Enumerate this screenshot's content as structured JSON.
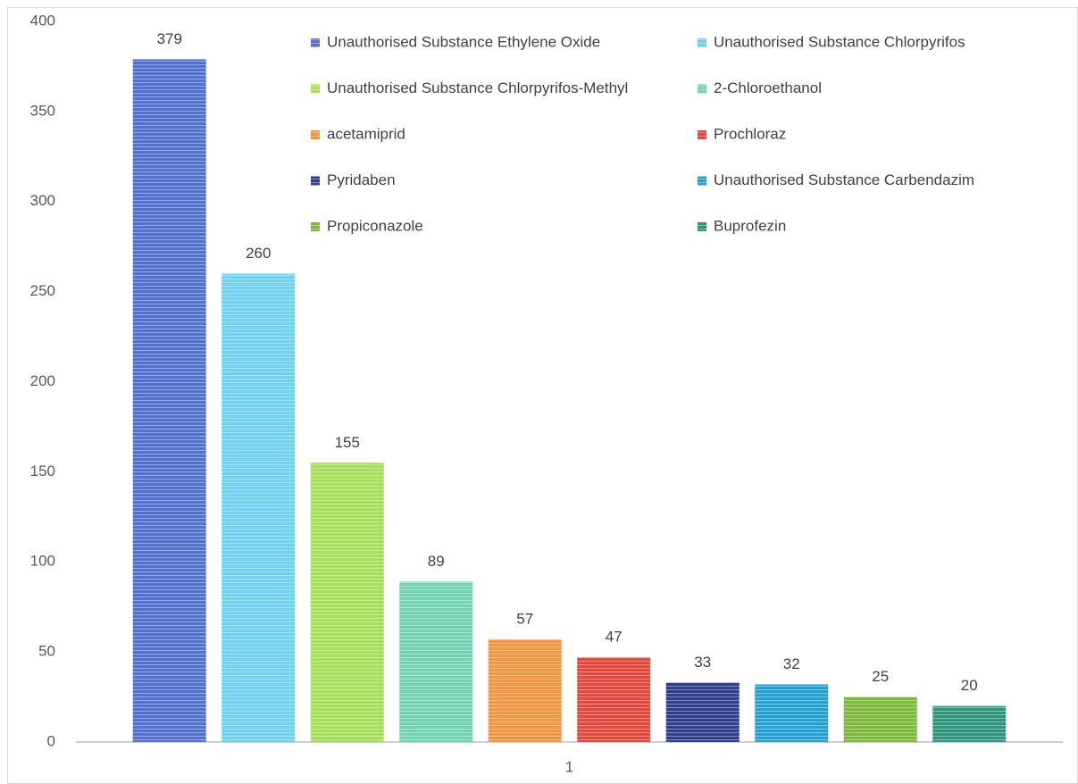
{
  "chart_data": {
    "type": "bar",
    "categories": [
      "1"
    ],
    "series": [
      {
        "name": "Unauthorised Substance Ethylene Oxide",
        "color": "#5470cf",
        "values": [
          379
        ]
      },
      {
        "name": "Unauthorised Substance Chlorpyrifos",
        "color": "#6fd0f2",
        "values": [
          260
        ]
      },
      {
        "name": "Unauthorised Substance Chlorpyrifos-Methyl",
        "color": "#a5de58",
        "values": [
          155
        ]
      },
      {
        "name": "2-Chloroethanol",
        "color": "#6fd3b4",
        "values": [
          89
        ]
      },
      {
        "name": "acetamiprid",
        "color": "#f5943e",
        "values": [
          57
        ]
      },
      {
        "name": "Prochloraz",
        "color": "#e8463b",
        "values": [
          47
        ]
      },
      {
        "name": "Pyridaben",
        "color": "#2e3f8c",
        "values": [
          33
        ]
      },
      {
        "name": "Unauthorised Substance Carbendazim",
        "color": "#22a1d2",
        "values": [
          32
        ]
      },
      {
        "name": "Propiconazole",
        "color": "#7cb93a",
        "values": [
          25
        ]
      },
      {
        "name": "Buprofezin",
        "color": "#2f957a",
        "values": [
          20
        ]
      }
    ],
    "ylim": [
      0,
      400
    ],
    "yticks": [
      0,
      50,
      100,
      150,
      200,
      250,
      300,
      350,
      400
    ],
    "grid": false,
    "legend": "top-right",
    "data_labels": true
  }
}
